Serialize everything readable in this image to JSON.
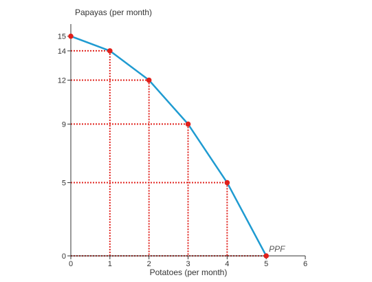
{
  "chart_data": {
    "type": "line",
    "xlabel": "Potatoes (per month)",
    "ylabel": "Papayas (per month)",
    "xlim": [
      0,
      6
    ],
    "ylim": [
      0,
      15.5
    ],
    "x_ticks": [
      0,
      1,
      2,
      3,
      4,
      5,
      6
    ],
    "y_ticks": [
      0,
      5,
      9,
      12,
      14,
      15
    ],
    "series": [
      {
        "points": [
          {
            "x": 0,
            "y": 15
          },
          {
            "x": 1,
            "y": 14
          },
          {
            "x": 2,
            "y": 12
          },
          {
            "x": 3,
            "y": 9
          },
          {
            "x": 4,
            "y": 5
          },
          {
            "x": 5,
            "y": 0
          }
        ]
      }
    ],
    "annotations": [
      {
        "text": "PPF",
        "x": 5,
        "y": 0
      }
    ],
    "guide_lines": "dotted",
    "grid": false,
    "colors": {
      "line": "#1f9bd1",
      "points": "#e0201b",
      "guides": "#e0201b",
      "axis": "#333333"
    }
  }
}
